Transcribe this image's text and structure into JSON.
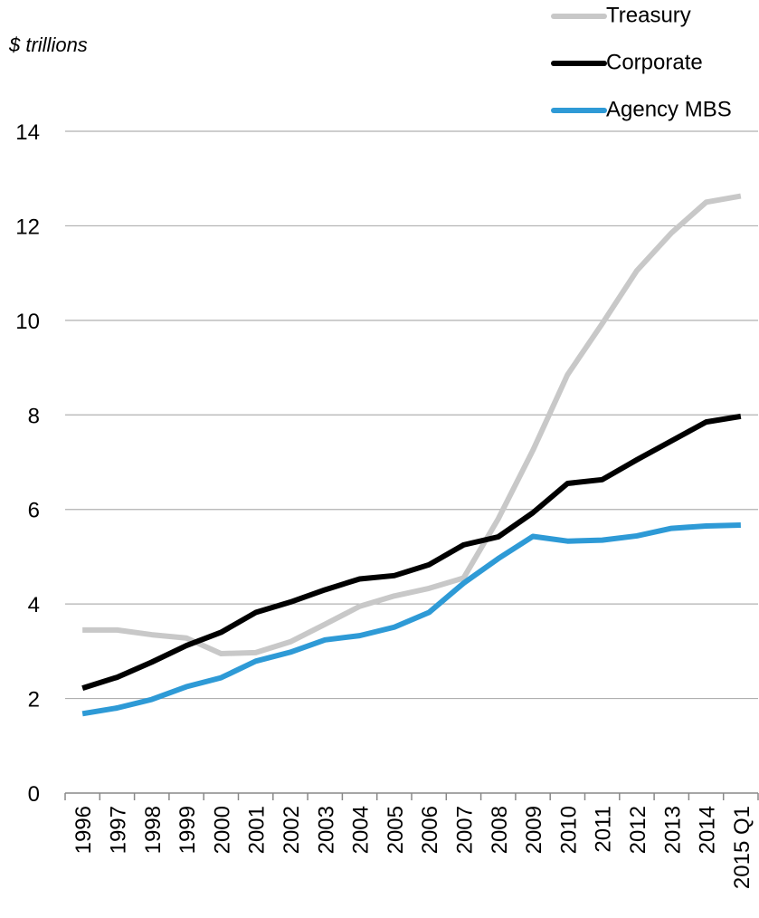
{
  "chart_data": {
    "type": "line",
    "y_label": "$ trillions",
    "categories": [
      "1996",
      "1997",
      "1998",
      "1999",
      "2000",
      "2001",
      "2002",
      "2003",
      "2004",
      "2005",
      "2006",
      "2007",
      "2008",
      "2009",
      "2010",
      "2011",
      "2012",
      "2013",
      "2014",
      "2015 Q1"
    ],
    "series": [
      {
        "name": "Treasury",
        "color": "#c8c8c8",
        "values": [
          3.45,
          3.45,
          3.35,
          3.28,
          2.95,
          2.97,
          3.2,
          3.57,
          3.95,
          4.17,
          4.33,
          4.55,
          5.8,
          7.25,
          8.85,
          9.93,
          11.05,
          11.85,
          12.5,
          12.63
        ]
      },
      {
        "name": "Corporate",
        "color": "#000000",
        "values": [
          2.22,
          2.45,
          2.77,
          3.12,
          3.4,
          3.82,
          4.04,
          4.3,
          4.53,
          4.6,
          4.83,
          5.25,
          5.42,
          5.93,
          6.55,
          6.63,
          7.05,
          7.45,
          7.85,
          7.97
        ]
      },
      {
        "name": "Agency MBS",
        "color": "#2e9ad6",
        "values": [
          1.68,
          1.8,
          1.98,
          2.25,
          2.44,
          2.79,
          2.98,
          3.24,
          3.33,
          3.51,
          3.82,
          4.44,
          4.96,
          5.43,
          5.33,
          5.35,
          5.44,
          5.6,
          5.65,
          5.67
        ]
      }
    ],
    "ylim": [
      0,
      14
    ],
    "yticks": [
      0,
      2,
      4,
      6,
      8,
      10,
      12,
      14
    ],
    "grid": true,
    "legend": "top-right"
  }
}
